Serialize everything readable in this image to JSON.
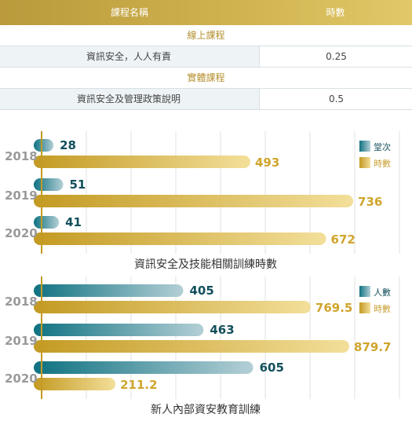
{
  "table": {
    "header": {
      "course_name": "課程名稱",
      "hours": "時數"
    },
    "sections": [
      {
        "title": "線上課程",
        "rows": [
          {
            "name": "資訊安全，人人有責",
            "hours": "0.25"
          }
        ]
      },
      {
        "title": "實體課程",
        "rows": [
          {
            "name": "資訊安全及管理政策說明",
            "hours": "0.5"
          }
        ]
      }
    ]
  },
  "chart_data": [
    {
      "type": "bar",
      "orientation": "horizontal",
      "title": "資訊安全及技能相關訓練時數",
      "categories": [
        "2018",
        "2019",
        "2020"
      ],
      "series": [
        {
          "name": "堂次",
          "values": [
            28,
            51,
            41
          ],
          "color": "#1c7f8c"
        },
        {
          "name": "時數",
          "values": [
            493,
            736,
            672
          ],
          "color": "#c9a238"
        }
      ],
      "xlim": [
        0,
        760
      ],
      "grid": true,
      "legend": "top-right"
    },
    {
      "type": "bar",
      "orientation": "horizontal",
      "title": "新人內部資安教育訓練",
      "categories": [
        "2018",
        "2019",
        "2020"
      ],
      "series": [
        {
          "name": "人數",
          "values": [
            405,
            463,
            605
          ],
          "color": "#1c7f8c"
        },
        {
          "name": "時數",
          "values": [
            769.5,
            879.7,
            211.2
          ],
          "color": "#c9a238"
        }
      ],
      "xlim": [
        0,
        920
      ],
      "grid": true,
      "legend": "top-right"
    }
  ]
}
